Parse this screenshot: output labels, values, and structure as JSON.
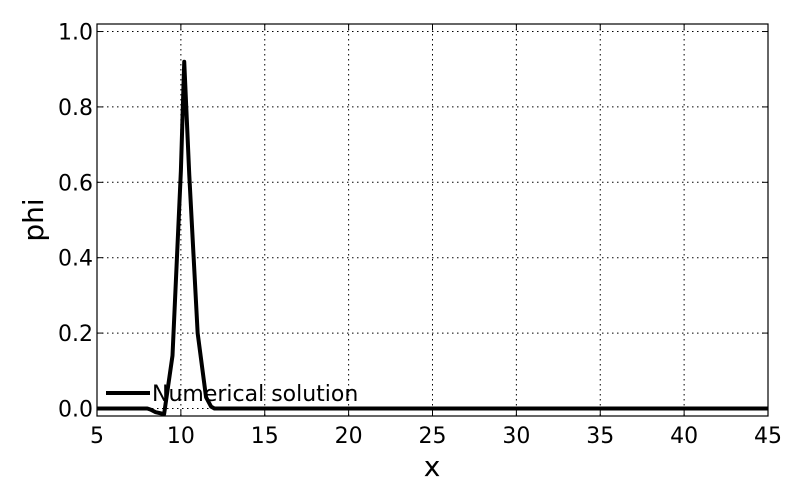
{
  "chart_data": {
    "type": "line",
    "title": "",
    "xlabel": "x",
    "ylabel": "phi",
    "xlim": [
      5,
      45
    ],
    "ylim": [
      -0.02,
      1.02
    ],
    "xticks": [
      5,
      10,
      15,
      20,
      25,
      30,
      35,
      40,
      45
    ],
    "xtick_labels": [
      "5",
      "10",
      "15",
      "20",
      "25",
      "30",
      "35",
      "40",
      "45"
    ],
    "yticks": [
      0.0,
      0.2,
      0.4,
      0.6,
      0.8,
      1.0
    ],
    "ytick_labels": [
      "0.0",
      "0.2",
      "0.4",
      "0.6",
      "0.8",
      "1.0"
    ],
    "grid": true,
    "legend_position": "bottom-left",
    "series": [
      {
        "name": "Numerical solution",
        "color": "#000000",
        "x": [
          5,
          8,
          8.2,
          8.5,
          9.0,
          9.5,
          10.0,
          10.2,
          10.5,
          11.0,
          11.5,
          11.8,
          12.0,
          12.5,
          15,
          20,
          25,
          30,
          35,
          40,
          45
        ],
        "y": [
          0.0,
          0.0,
          -0.003,
          -0.01,
          -0.015,
          0.14,
          0.63,
          0.92,
          0.62,
          0.2,
          0.03,
          0.005,
          0.0,
          0.0,
          0.0,
          0.0,
          0.0,
          0.0,
          0.0,
          0.0,
          0.0
        ]
      }
    ]
  }
}
